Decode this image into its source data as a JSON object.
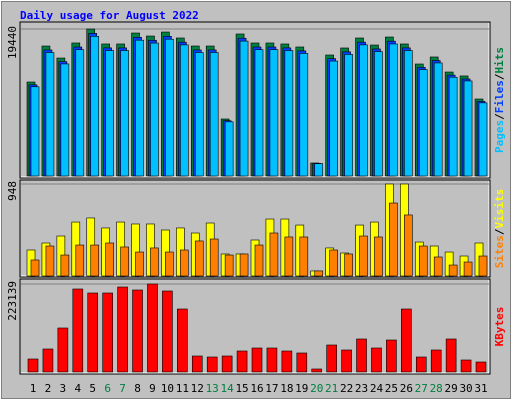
{
  "chart_data": {
    "type": "bar",
    "title": "Daily usage for August 2022",
    "categories": [
      "1",
      "2",
      "3",
      "4",
      "5",
      "6",
      "7",
      "8",
      "9",
      "10",
      "11",
      "12",
      "13",
      "14",
      "15",
      "16",
      "17",
      "18",
      "19",
      "20",
      "21",
      "22",
      "23",
      "24",
      "25",
      "26",
      "27",
      "28",
      "29",
      "30",
      "31"
    ],
    "category_colors": [
      "#000000",
      "#000000",
      "#000000",
      "#000000",
      "#000000",
      "#008040",
      "#008040",
      "#000000",
      "#000000",
      "#000000",
      "#000000",
      "#000000",
      "#008040",
      "#008040",
      "#000000",
      "#000000",
      "#000000",
      "#000000",
      "#000000",
      "#008040",
      "#008040",
      "#000000",
      "#000000",
      "#000000",
      "#000000",
      "#000000",
      "#008040",
      "#008040",
      "#000000",
      "#000000",
      "#000000"
    ],
    "panels": [
      {
        "ylim": [
          0,
          19440
        ],
        "yticks": [
          19440
        ],
        "legend_separator": "/",
        "series": [
          {
            "name": "Pages",
            "color": "#00c0ff",
            "values": [
              11800,
              16330,
              14820,
              16710,
              18470,
              16590,
              16590,
              17960,
              17580,
              18090,
              17340,
              16330,
              16330,
              7160,
              17840,
              16710,
              16710,
              16590,
              16210,
              1630,
              15200,
              16080,
              17340,
              16450,
              17460,
              16590,
              14070,
              14950,
              13060,
              12570,
              9670
            ]
          },
          {
            "name": "Files",
            "color": "#0040ff",
            "values": [
              12060,
              16670,
              15130,
              17060,
              18860,
              16940,
              16940,
              18340,
              17950,
              18470,
              17700,
              16670,
              16670,
              7310,
              18220,
              17060,
              17060,
              16940,
              16550,
              1670,
              15520,
              16420,
              17700,
              16800,
              17830,
              16940,
              14370,
              15270,
              13340,
              12830,
              9870
            ]
          },
          {
            "name": "Hits",
            "color": "#008040",
            "values": [
              12430,
              17190,
              15600,
              17590,
              19440,
              17460,
              17460,
              18910,
              18510,
              19040,
              18250,
              17190,
              17190,
              7540,
              18780,
              17590,
              17590,
              17460,
              17060,
              1720,
              16000,
              16930,
              18250,
              17320,
              18380,
              17460,
              14810,
              15740,
              13750,
              13230,
              10180
            ]
          }
        ]
      },
      {
        "ylim": [
          0,
          948
        ],
        "yticks": [
          948
        ],
        "legend_separator": "/",
        "series": [
          {
            "name": "Sites",
            "color": "#ff8000",
            "values": [
              165,
              309,
              216,
              319,
              319,
              340,
              299,
              247,
              289,
              247,
              268,
              361,
              381,
              216,
              227,
              319,
              443,
              402,
              402,
              52,
              268,
              227,
              412,
              402,
              752,
              629,
              309,
              196,
              113,
              144,
              206
            ]
          },
          {
            "name": "Visits",
            "color": "#ffff00",
            "values": [
              268,
              340,
              412,
              556,
              598,
              495,
              556,
              536,
              536,
              474,
              495,
              443,
              546,
              227,
              227,
              371,
              587,
              587,
              525,
              52,
              289,
              237,
              525,
              556,
              948,
              948,
              350,
              309,
              247,
              206,
              340
            ]
          }
        ]
      },
      {
        "ylim": [
          0,
          223139
        ],
        "yticks": [
          223139
        ],
        "series": [
          {
            "name": "KBytes",
            "color": "#ff0000",
            "values": [
              32960,
              58320,
              111570,
              210460,
              200320,
              200320,
              215530,
              207920,
              223139,
              205390,
              159740,
              40570,
              38040,
              40570,
              53250,
              60860,
              60860,
              53250,
              48180,
              7610,
              68460,
              55790,
              83680,
              60860,
              81140,
              159740,
              38040,
              55790,
              83680,
              30430,
              25360
            ]
          }
        ]
      }
    ]
  }
}
